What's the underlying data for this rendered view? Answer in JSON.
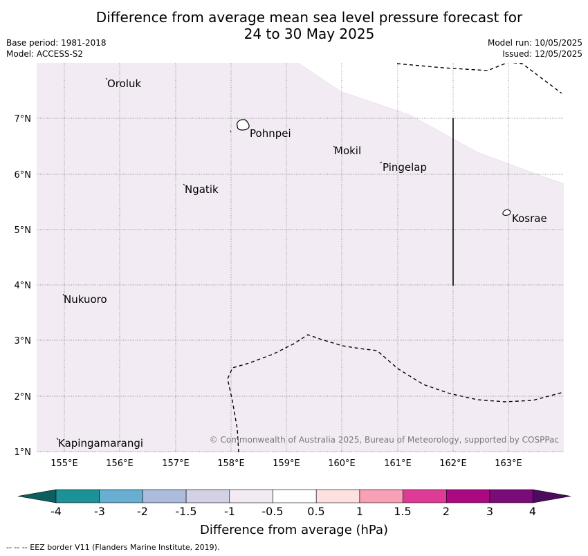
{
  "title_line1": "Difference from average mean sea level pressure forecast for",
  "title_line2": "24 to 30 May 2025",
  "base_period": "Base period: 1981-2018",
  "model": "Model: ACCESS-S2",
  "model_run": "Model run: 10/05/2025",
  "issued": "Issued: 12/05/2025",
  "copyright": "© Commonwealth of Australia 2025, Bureau of Meteorology, supported by COSPPac",
  "map": {
    "lon_labels": [
      "155°E",
      "156°E",
      "157°E",
      "158°E",
      "159°E",
      "160°E",
      "161°E",
      "162°E",
      "163°E"
    ],
    "lat_labels": [
      "7°N",
      "6°N",
      "5°N",
      "4°N",
      "3°N",
      "2°N",
      "1°N"
    ],
    "places": [
      {
        "name": "Oroluk"
      },
      {
        "name": "Pohnpei"
      },
      {
        "name": "Mokil"
      },
      {
        "name": "Pingelap"
      },
      {
        "name": "Ngatik"
      },
      {
        "name": "Kosrae"
      },
      {
        "name": "Nukuoro"
      },
      {
        "name": "Kapingamarangi"
      }
    ],
    "shading": {
      "value_range": "-1 to -0.5",
      "color": "#f3ebf4"
    }
  },
  "colorbar": {
    "label": "Difference from average (hPa)",
    "ticks": [
      "-4",
      "-3",
      "-2",
      "-1.5",
      "-1",
      "-0.5",
      "0.5",
      "1",
      "1.5",
      "2",
      "3",
      "4"
    ],
    "colors": [
      "#0d5e5e",
      "#1c9197",
      "#68aed0",
      "#abbcdc",
      "#d2d2e4",
      "#f3ebf4",
      "#ffffff",
      "#fde1e1",
      "#f7a0b6",
      "#de3b97",
      "#ac0882",
      "#7a0b79",
      "#4d0b60"
    ]
  },
  "footer": "-- -- -- EEZ border V11 (Flanders Marine Institute, 2019)."
}
